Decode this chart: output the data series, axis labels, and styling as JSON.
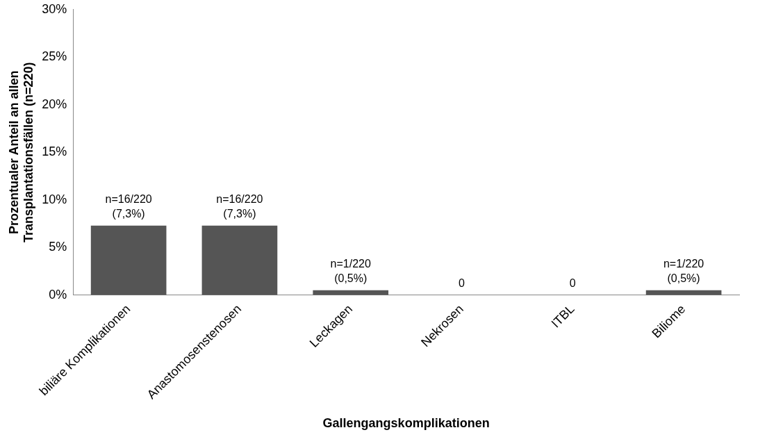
{
  "chart_data": {
    "type": "bar",
    "xlabel": "Gallengangskomplikationen",
    "ylabel": "Prozentualer Anteil an allen Transplantationsfällen (n=220)",
    "categories": [
      "biliäre Komplikationen",
      "Anastomosenstenosen",
      "Leckagen",
      "Nekrosen",
      "ITBL",
      "Biliome"
    ],
    "values": [
      7.3,
      7.3,
      0.5,
      0,
      0,
      0.5
    ],
    "value_labels": [
      "n=16/220\n(7,3%)",
      "n=16/220\n(7,3%)",
      "n=1/220\n(0,5%)",
      "0",
      "0",
      "n=1/220\n(0,5%)"
    ],
    "color": "#555555",
    "ylim": [
      0,
      30
    ],
    "yticks": [
      {
        "value": 0,
        "label": "0%"
      },
      {
        "value": 5,
        "label": "5%"
      },
      {
        "value": 10,
        "label": "10%"
      },
      {
        "value": 15,
        "label": "15%"
      },
      {
        "value": 20,
        "label": "20%"
      },
      {
        "value": 25,
        "label": "25%"
      },
      {
        "value": 30,
        "label": "30%"
      }
    ],
    "grid": false,
    "legend": false
  }
}
